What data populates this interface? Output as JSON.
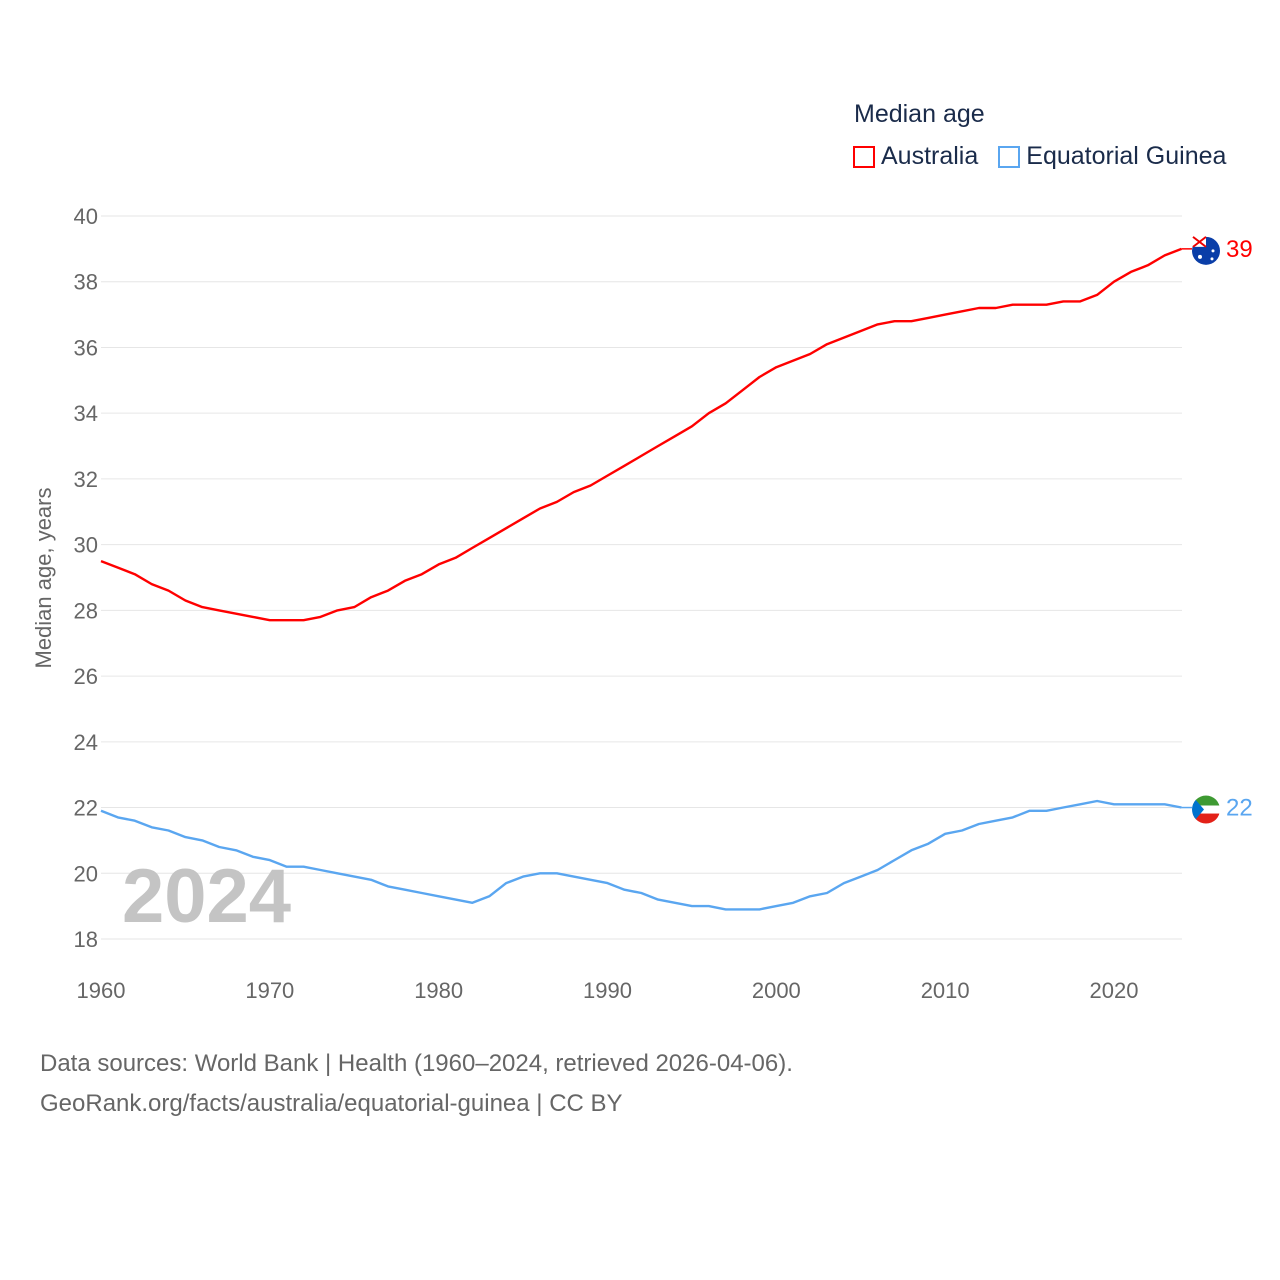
{
  "chart_data": {
    "type": "line",
    "title": "Median age",
    "ylabel": "Median age, years",
    "xlabel": "",
    "xlim": [
      1960,
      2024
    ],
    "ylim": [
      18,
      40
    ],
    "xticks": [
      "1960",
      "1970",
      "1980",
      "1990",
      "2000",
      "2010",
      "2020"
    ],
    "yticks": [
      "18",
      "20",
      "22",
      "24",
      "26",
      "28",
      "30",
      "32",
      "34",
      "36",
      "38",
      "40"
    ],
    "grid": true,
    "legend_position": "top-right",
    "year_watermark": "2024",
    "x": [
      1960,
      1961,
      1962,
      1963,
      1964,
      1965,
      1966,
      1967,
      1968,
      1969,
      1970,
      1971,
      1972,
      1973,
      1974,
      1975,
      1976,
      1977,
      1978,
      1979,
      1980,
      1981,
      1982,
      1983,
      1984,
      1985,
      1986,
      1987,
      1988,
      1989,
      1990,
      1991,
      1992,
      1993,
      1994,
      1995,
      1996,
      1997,
      1998,
      1999,
      2000,
      2001,
      2002,
      2003,
      2004,
      2005,
      2006,
      2007,
      2008,
      2009,
      2010,
      2011,
      2012,
      2013,
      2014,
      2015,
      2016,
      2017,
      2018,
      2019,
      2020,
      2021,
      2022,
      2023,
      2024
    ],
    "series": [
      {
        "name": "Australia",
        "color": "#ff0000",
        "end_label": "39",
        "values": [
          29.5,
          29.3,
          29.1,
          28.8,
          28.6,
          28.3,
          28.1,
          28.0,
          27.9,
          27.8,
          27.7,
          27.7,
          27.7,
          27.8,
          28.0,
          28.1,
          28.4,
          28.6,
          28.9,
          29.1,
          29.4,
          29.6,
          29.9,
          30.2,
          30.5,
          30.8,
          31.1,
          31.3,
          31.6,
          31.8,
          32.1,
          32.4,
          32.7,
          33.0,
          33.3,
          33.6,
          34.0,
          34.3,
          34.7,
          35.1,
          35.4,
          35.6,
          35.8,
          36.1,
          36.3,
          36.5,
          36.7,
          36.8,
          36.8,
          36.9,
          37.0,
          37.1,
          37.2,
          37.2,
          37.3,
          37.3,
          37.3,
          37.4,
          37.4,
          37.6,
          38.0,
          38.3,
          38.5,
          38.8,
          39.0
        ]
      },
      {
        "name": "Equatorial Guinea",
        "color": "#5aa6f0",
        "end_label": "22",
        "values": [
          21.9,
          21.7,
          21.6,
          21.4,
          21.3,
          21.1,
          21.0,
          20.8,
          20.7,
          20.5,
          20.4,
          20.2,
          20.2,
          20.1,
          20.0,
          19.9,
          19.8,
          19.6,
          19.5,
          19.4,
          19.3,
          19.2,
          19.1,
          19.3,
          19.7,
          19.9,
          20.0,
          20.0,
          19.9,
          19.8,
          19.7,
          19.5,
          19.4,
          19.2,
          19.1,
          19.0,
          19.0,
          18.9,
          18.9,
          18.9,
          19.0,
          19.1,
          19.3,
          19.4,
          19.7,
          19.9,
          20.1,
          20.4,
          20.7,
          20.9,
          21.2,
          21.3,
          21.5,
          21.6,
          21.7,
          21.9,
          21.9,
          22.0,
          22.1,
          22.2,
          22.1,
          22.1,
          22.1,
          22.1,
          22.0
        ]
      }
    ]
  },
  "footer": {
    "line1": "Data sources: World Bank | Health (1960–2024, retrieved 2026-04-06).",
    "line2": "GeoRank.org/facts/australia/equatorial-guinea | CC BY"
  }
}
